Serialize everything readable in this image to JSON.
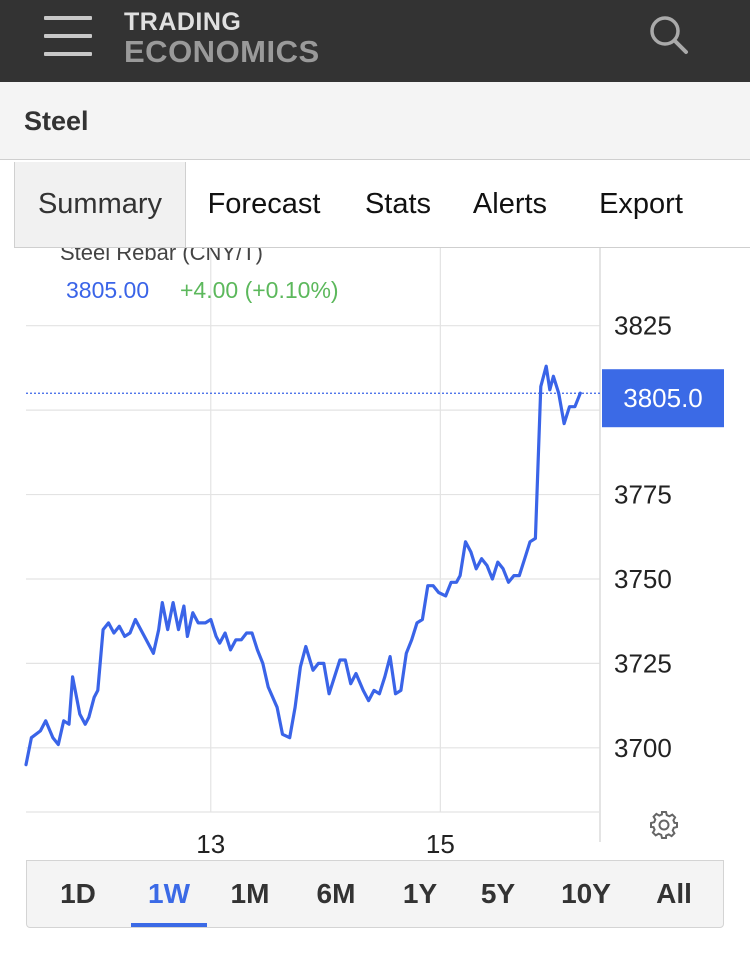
{
  "app": {
    "logo_line1": "TRADING",
    "logo_line2": "ECONOMICS",
    "menu_icon": "hamburger-menu-icon",
    "search_icon": "search-icon"
  },
  "page": {
    "title": "Steel"
  },
  "tabs": [
    {
      "label": "Summary",
      "active": true
    },
    {
      "label": "Forecast",
      "active": false
    },
    {
      "label": "Stats",
      "active": false
    },
    {
      "label": "Alerts",
      "active": false
    },
    {
      "label": "Export",
      "active": false
    }
  ],
  "chart_data": {
    "type": "line",
    "series_label": "Steel Rebar (CNY/T)",
    "last_price": "3805.00",
    "change": "+4.00 (+0.10%)",
    "current_value_badge": "3805.0",
    "current_value": 3805.0,
    "x_tick_labels": [
      "13",
      "15"
    ],
    "x_tick_positions": [
      10.3,
      23.1
    ],
    "x_range": [
      0,
      32
    ],
    "y_ticks": [
      3700,
      3725,
      3750,
      3775,
      3825
    ],
    "y_grid": [
      3700,
      3725,
      3750,
      3775,
      3800,
      3825
    ],
    "ylim": [
      3681,
      3848
    ],
    "grid": true,
    "line_color": "#3a64e8",
    "up_color": "#5cb85c",
    "badge_color": "#3b6ae6",
    "series": [
      {
        "name": "Steel Rebar (CNY/T)",
        "points": [
          [
            0.0,
            3695
          ],
          [
            0.3,
            3703
          ],
          [
            0.8,
            3705
          ],
          [
            1.1,
            3708
          ],
          [
            1.5,
            3703
          ],
          [
            1.8,
            3701
          ],
          [
            2.1,
            3708
          ],
          [
            2.4,
            3707
          ],
          [
            2.6,
            3721
          ],
          [
            3.0,
            3710
          ],
          [
            3.3,
            3707
          ],
          [
            3.5,
            3709
          ],
          [
            3.8,
            3715
          ],
          [
            4.0,
            3717
          ],
          [
            4.3,
            3735
          ],
          [
            4.6,
            3737
          ],
          [
            4.9,
            3734
          ],
          [
            5.2,
            3736
          ],
          [
            5.5,
            3733
          ],
          [
            5.8,
            3734
          ],
          [
            6.1,
            3738
          ],
          [
            6.4,
            3735
          ],
          [
            6.8,
            3731
          ],
          [
            7.1,
            3728
          ],
          [
            7.4,
            3735
          ],
          [
            7.6,
            3743
          ],
          [
            7.9,
            3735
          ],
          [
            8.2,
            3743
          ],
          [
            8.5,
            3735
          ],
          [
            8.8,
            3742
          ],
          [
            9.0,
            3733
          ],
          [
            9.3,
            3740
          ],
          [
            9.6,
            3737
          ],
          [
            10.0,
            3737
          ],
          [
            10.3,
            3738
          ],
          [
            10.6,
            3733
          ],
          [
            10.8,
            3731
          ],
          [
            11.1,
            3734
          ],
          [
            11.4,
            3729
          ],
          [
            11.7,
            3732
          ],
          [
            12.0,
            3732
          ],
          [
            12.3,
            3734
          ],
          [
            12.6,
            3734
          ],
          [
            12.9,
            3729
          ],
          [
            13.2,
            3725
          ],
          [
            13.5,
            3718
          ],
          [
            14.0,
            3712
          ],
          [
            14.3,
            3704
          ],
          [
            14.7,
            3703
          ],
          [
            15.0,
            3712
          ],
          [
            15.3,
            3724
          ],
          [
            15.6,
            3730
          ],
          [
            16.0,
            3723
          ],
          [
            16.3,
            3725
          ],
          [
            16.6,
            3725
          ],
          [
            16.9,
            3716
          ],
          [
            17.2,
            3721
          ],
          [
            17.5,
            3726
          ],
          [
            17.8,
            3726
          ],
          [
            18.1,
            3719
          ],
          [
            18.4,
            3722
          ],
          [
            18.8,
            3717
          ],
          [
            19.1,
            3714
          ],
          [
            19.4,
            3717
          ],
          [
            19.7,
            3716
          ],
          [
            20.0,
            3721
          ],
          [
            20.3,
            3727
          ],
          [
            20.6,
            3716
          ],
          [
            20.9,
            3717
          ],
          [
            21.2,
            3728
          ],
          [
            21.5,
            3732
          ],
          [
            21.8,
            3737
          ],
          [
            22.1,
            3738
          ],
          [
            22.4,
            3748
          ],
          [
            22.7,
            3748
          ],
          [
            23.0,
            3746
          ],
          [
            23.4,
            3745
          ],
          [
            23.7,
            3749
          ],
          [
            24.0,
            3749
          ],
          [
            24.2,
            3751
          ],
          [
            24.5,
            3761
          ],
          [
            24.8,
            3758
          ],
          [
            25.1,
            3753
          ],
          [
            25.4,
            3756
          ],
          [
            25.7,
            3754
          ],
          [
            26.0,
            3750
          ],
          [
            26.3,
            3755
          ],
          [
            26.6,
            3753
          ],
          [
            26.9,
            3749
          ],
          [
            27.2,
            3751
          ],
          [
            27.5,
            3751
          ],
          [
            27.8,
            3756
          ],
          [
            28.1,
            3761
          ],
          [
            28.4,
            3762
          ],
          [
            28.7,
            3807
          ],
          [
            29.0,
            3813
          ],
          [
            29.2,
            3806
          ],
          [
            29.4,
            3810
          ],
          [
            29.7,
            3805
          ],
          [
            30.0,
            3796
          ],
          [
            30.3,
            3801
          ],
          [
            30.6,
            3801
          ],
          [
            30.9,
            3805
          ]
        ]
      }
    ]
  },
  "range_buttons": [
    {
      "label": "1D",
      "active": false
    },
    {
      "label": "1W",
      "active": true
    },
    {
      "label": "1M",
      "active": false
    },
    {
      "label": "6M",
      "active": false
    },
    {
      "label": "1Y",
      "active": false
    },
    {
      "label": "5Y",
      "active": false
    },
    {
      "label": "10Y",
      "active": false
    },
    {
      "label": "All",
      "active": false
    }
  ],
  "settings_icon": "gear-icon"
}
